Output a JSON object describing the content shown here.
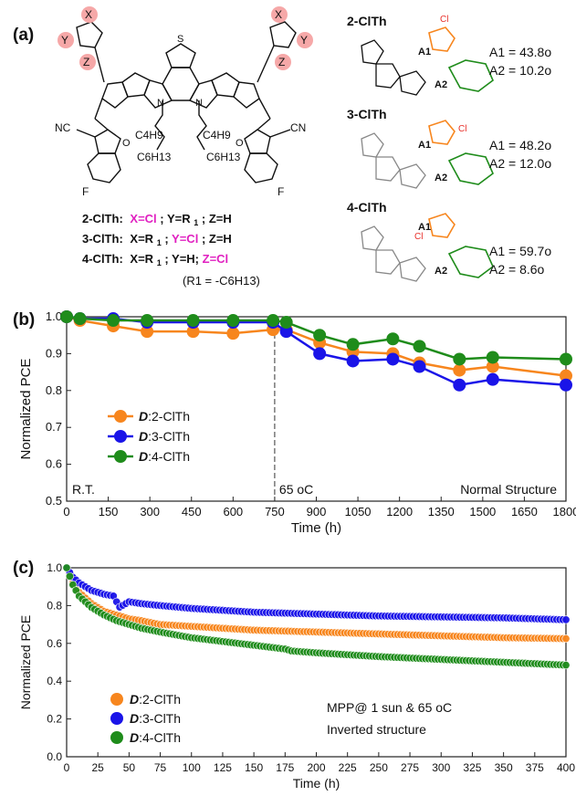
{
  "panels": {
    "a": "(a)",
    "b": "(b)",
    "c": "(c)"
  },
  "structure": {
    "left": {
      "subst_x": "X",
      "subst_y": "Y",
      "subst_z": "Z",
      "cn": "NC",
      "cn2": "CN",
      "c4h9": "C4H9",
      "c6h13": "C6H13",
      "n": "N",
      "s": "S",
      "f": "F",
      "o": "O",
      "lines": [
        {
          "name": "2-ClTh:",
          "x": "X=Cl",
          "rest1": "; Y=R",
          "rest2": "; Z=H",
          "sub": "1"
        },
        {
          "name": "3-ClTh:",
          "x": "X=R",
          "sub": "1",
          "mid": "; ",
          "y": "Y=Cl",
          "rest2": "; Z=H"
        },
        {
          "name": "4-ClTh:",
          "x": "X=R",
          "sub": "1",
          "mid": "; Y=H; ",
          "z": "Z=Cl"
        }
      ],
      "r1_note": "(R1 = -C6H13)"
    },
    "right": [
      {
        "name": "2-ClTh",
        "a1": "A1 = 43.8o",
        "a2": "A2 = 10.2o",
        "a1_val": "43.8",
        "a2_val": "10.2"
      },
      {
        "name": "3-ClTh",
        "a1": "A1 = 48.2o",
        "a2": "A2 = 12.0o",
        "a1_val": "48.2",
        "a2_val": "12.0"
      },
      {
        "name": "4-ClTh",
        "a1": "A1 = 59.7o",
        "a2": "A2 = 8.6o",
        "a1_val": "59.7",
        "a2_val": "8.6"
      }
    ]
  },
  "colors": {
    "orange": "#f7861e",
    "blue": "#1a14e8",
    "green": "#1f8c1b",
    "magenta": "#e020c0",
    "red_sub": "#e8302a",
    "highlight": "#f6a8a8"
  },
  "chart_data": [
    {
      "type": "line",
      "panel": "b",
      "xlabel": "Time (h)",
      "ylabel": "Normalized PCE",
      "xlim": [
        0,
        1800
      ],
      "ylim": [
        0.5,
        1.0
      ],
      "xticks": [
        "0",
        "150",
        "300",
        "450",
        "600",
        "750",
        "900",
        "1050",
        "1200",
        "1350",
        "1500",
        "1650",
        "1800"
      ],
      "yticks": [
        "0.5",
        "0.6",
        "0.7",
        "0.8",
        "0.9",
        "1.0"
      ],
      "divider_x": 750,
      "annotations": {
        "left": "R.T.",
        "mid": "65 oC",
        "right": "Normal Structure"
      },
      "legend_position": "left-middle",
      "series": [
        {
          "name": "D:2-ClTh",
          "prefix": "D",
          "suffix": ":2-ClTh",
          "color": "#f7861e",
          "x": [
            0,
            48,
            168,
            290,
            456,
            600,
            744,
            792,
            912,
            1032,
            1176,
            1272,
            1416,
            1536,
            1800
          ],
          "y": [
            1.0,
            0.99,
            0.975,
            0.96,
            0.96,
            0.955,
            0.965,
            0.965,
            0.93,
            0.905,
            0.9,
            0.875,
            0.855,
            0.865,
            0.84
          ]
        },
        {
          "name": "D:3-ClTh",
          "prefix": "D",
          "suffix": ":3-ClTh",
          "color": "#1a14e8",
          "x": [
            0,
            48,
            168,
            290,
            456,
            600,
            744,
            792,
            912,
            1032,
            1176,
            1272,
            1416,
            1536,
            1800
          ],
          "y": [
            1.0,
            0.995,
            0.995,
            0.985,
            0.985,
            0.985,
            0.985,
            0.96,
            0.9,
            0.88,
            0.885,
            0.865,
            0.815,
            0.83,
            0.815
          ]
        },
        {
          "name": "D:4-ClTh",
          "prefix": "D",
          "suffix": ":4-ClTh",
          "color": "#1f8c1b",
          "x": [
            0,
            48,
            168,
            290,
            456,
            600,
            744,
            792,
            912,
            1032,
            1176,
            1272,
            1416,
            1536,
            1800
          ],
          "y": [
            1.0,
            0.995,
            0.99,
            0.99,
            0.99,
            0.99,
            0.99,
            0.985,
            0.95,
            0.925,
            0.94,
            0.92,
            0.885,
            0.89,
            0.885
          ]
        }
      ]
    },
    {
      "type": "scatter",
      "panel": "c",
      "xlabel": "Time (h)",
      "ylabel": "Normalized PCE",
      "xlim": [
        0,
        400
      ],
      "ylim": [
        0.0,
        1.0
      ],
      "xticks": [
        "0",
        "25",
        "50",
        "75",
        "100",
        "125",
        "150",
        "175",
        "200",
        "225",
        "250",
        "275",
        "300",
        "325",
        "350",
        "375",
        "400"
      ],
      "yticks": [
        "0.0",
        "0.2",
        "0.4",
        "0.6",
        "0.8",
        "1.0"
      ],
      "annotations": {
        "line1": "MPP@ 1 sun & 65 oC",
        "line2": "Inverted structure"
      },
      "legend_position": "bottom-left",
      "series": [
        {
          "name": "D:2-ClTh",
          "prefix": "D",
          "suffix": ":2-ClTh",
          "color": "#f7861e",
          "x": [
            0,
            5,
            10,
            20,
            30,
            40,
            50,
            60,
            75,
            100,
            125,
            150,
            175,
            200,
            250,
            300,
            350,
            400
          ],
          "y": [
            1.0,
            0.92,
            0.87,
            0.81,
            0.77,
            0.75,
            0.73,
            0.72,
            0.7,
            0.69,
            0.68,
            0.67,
            0.665,
            0.66,
            0.65,
            0.64,
            0.63,
            0.625
          ]
        },
        {
          "name": "D:3-ClTh",
          "prefix": "D",
          "suffix": ":3-ClTh",
          "color": "#1a14e8",
          "x": [
            0,
            5,
            10,
            20,
            30,
            38,
            42,
            50,
            60,
            75,
            100,
            125,
            150,
            175,
            200,
            250,
            300,
            350,
            400
          ],
          "y": [
            1.0,
            0.95,
            0.92,
            0.88,
            0.86,
            0.85,
            0.79,
            0.82,
            0.81,
            0.8,
            0.785,
            0.775,
            0.765,
            0.76,
            0.755,
            0.745,
            0.74,
            0.735,
            0.725
          ]
        },
        {
          "name": "D:4-ClTh",
          "prefix": "D",
          "suffix": ":4-ClTh",
          "color": "#1f8c1b",
          "x": [
            0,
            5,
            10,
            20,
            30,
            40,
            50,
            60,
            75,
            100,
            125,
            150,
            175,
            180,
            200,
            250,
            300,
            350,
            400
          ],
          "y": [
            1.0,
            0.91,
            0.85,
            0.79,
            0.75,
            0.72,
            0.7,
            0.68,
            0.66,
            0.63,
            0.61,
            0.59,
            0.57,
            0.56,
            0.55,
            0.53,
            0.515,
            0.5,
            0.485
          ]
        }
      ]
    }
  ]
}
